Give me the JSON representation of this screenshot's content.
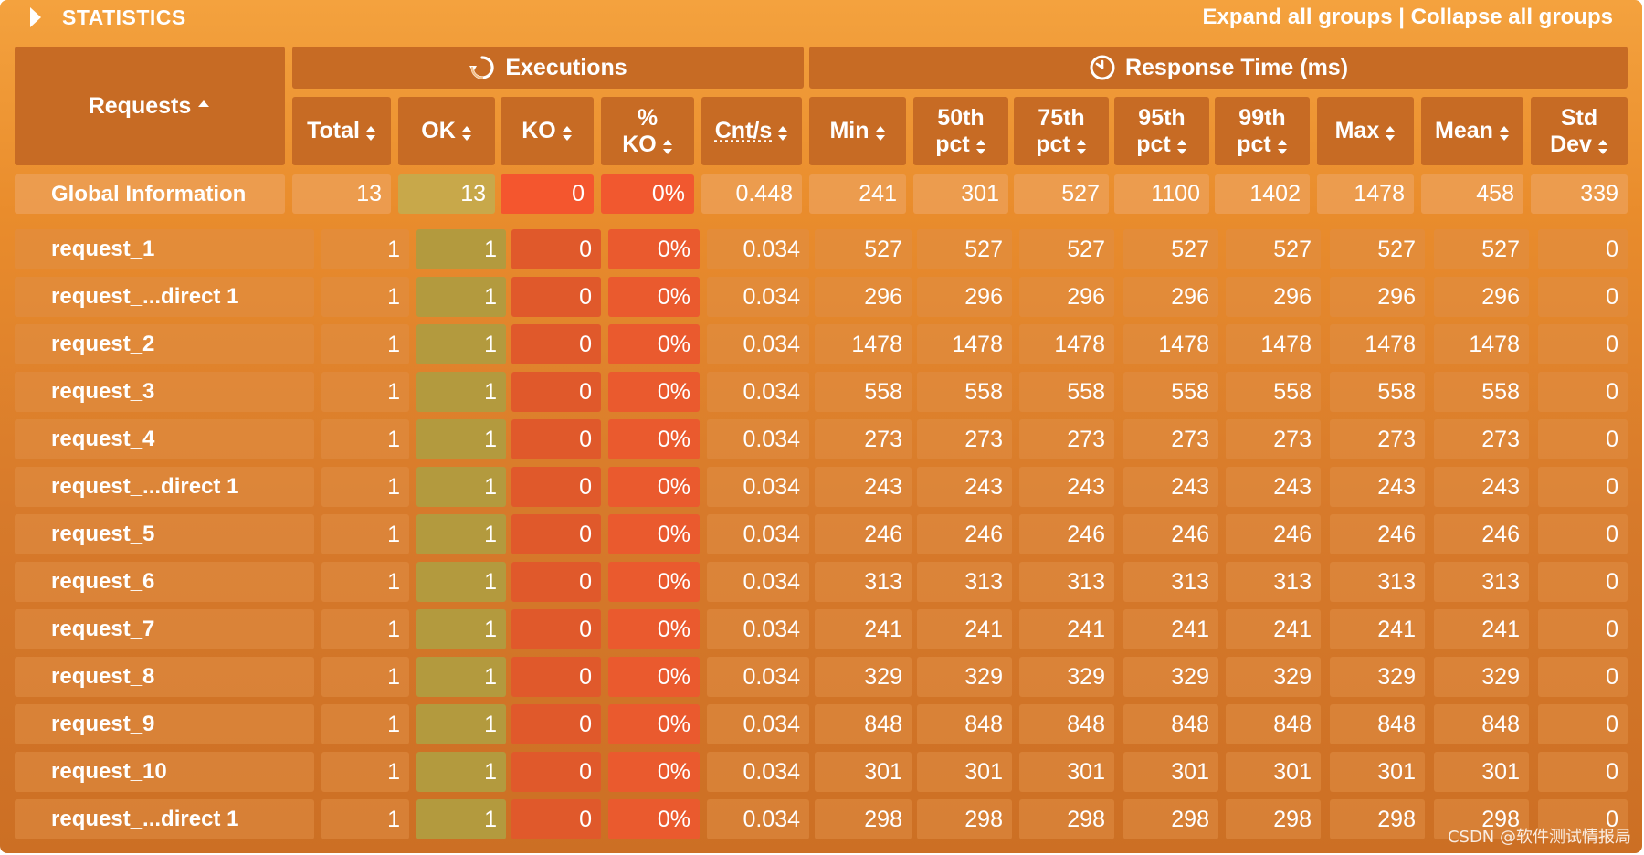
{
  "title": "STATISTICS",
  "actions": {
    "expand": "Expand all groups",
    "separator": "|",
    "collapse": "Collapse all groups"
  },
  "groups": {
    "executions": "Executions",
    "response_time": "Response Time (ms)"
  },
  "columns": {
    "requests": "Requests",
    "total": "Total",
    "ok": "OK",
    "ko": "KO",
    "pct_ko_1": "%",
    "pct_ko_2": "KO",
    "cnts": "Cnt/s",
    "min": "Min",
    "p50_1": "50th",
    "p50_2": "pct",
    "p75_1": "75th",
    "p75_2": "pct",
    "p95_1": "95th",
    "p95_2": "pct",
    "p99_1": "99th",
    "p99_2": "pct",
    "max": "Max",
    "mean": "Mean",
    "std_1": "Std",
    "std_2": "Dev"
  },
  "global": [
    "Global Information",
    "13",
    "13",
    "0",
    "0%",
    "0.448",
    "241",
    "301",
    "527",
    "1100",
    "1402",
    "1478",
    "458",
    "339"
  ],
  "rows": [
    [
      "request_1",
      "1",
      "1",
      "0",
      "0%",
      "0.034",
      "527",
      "527",
      "527",
      "527",
      "527",
      "527",
      "527",
      "0"
    ],
    [
      "request_...direct 1",
      "1",
      "1",
      "0",
      "0%",
      "0.034",
      "296",
      "296",
      "296",
      "296",
      "296",
      "296",
      "296",
      "0"
    ],
    [
      "request_2",
      "1",
      "1",
      "0",
      "0%",
      "0.034",
      "1478",
      "1478",
      "1478",
      "1478",
      "1478",
      "1478",
      "1478",
      "0"
    ],
    [
      "request_3",
      "1",
      "1",
      "0",
      "0%",
      "0.034",
      "558",
      "558",
      "558",
      "558",
      "558",
      "558",
      "558",
      "0"
    ],
    [
      "request_4",
      "1",
      "1",
      "0",
      "0%",
      "0.034",
      "273",
      "273",
      "273",
      "273",
      "273",
      "273",
      "273",
      "0"
    ],
    [
      "request_...direct 1",
      "1",
      "1",
      "0",
      "0%",
      "0.034",
      "243",
      "243",
      "243",
      "243",
      "243",
      "243",
      "243",
      "0"
    ],
    [
      "request_5",
      "1",
      "1",
      "0",
      "0%",
      "0.034",
      "246",
      "246",
      "246",
      "246",
      "246",
      "246",
      "246",
      "0"
    ],
    [
      "request_6",
      "1",
      "1",
      "0",
      "0%",
      "0.034",
      "313",
      "313",
      "313",
      "313",
      "313",
      "313",
      "313",
      "0"
    ],
    [
      "request_7",
      "1",
      "1",
      "0",
      "0%",
      "0.034",
      "241",
      "241",
      "241",
      "241",
      "241",
      "241",
      "241",
      "0"
    ],
    [
      "request_8",
      "1",
      "1",
      "0",
      "0%",
      "0.034",
      "329",
      "329",
      "329",
      "329",
      "329",
      "329",
      "329",
      "0"
    ],
    [
      "request_9",
      "1",
      "1",
      "0",
      "0%",
      "0.034",
      "848",
      "848",
      "848",
      "848",
      "848",
      "848",
      "848",
      "0"
    ],
    [
      "request_10",
      "1",
      "1",
      "0",
      "0%",
      "0.034",
      "301",
      "301",
      "301",
      "301",
      "301",
      "301",
      "301",
      "0"
    ],
    [
      "request_...direct 1",
      "1",
      "1",
      "0",
      "0%",
      "0.034",
      "298",
      "298",
      "298",
      "298",
      "298",
      "298",
      "298",
      "0"
    ]
  ],
  "icons": {
    "executions": "refresh-icon",
    "response_time": "clock-icon",
    "sort": "sort-icon",
    "title": "triangle-right-icon"
  },
  "watermark": "CSDN @软件测试情报局"
}
